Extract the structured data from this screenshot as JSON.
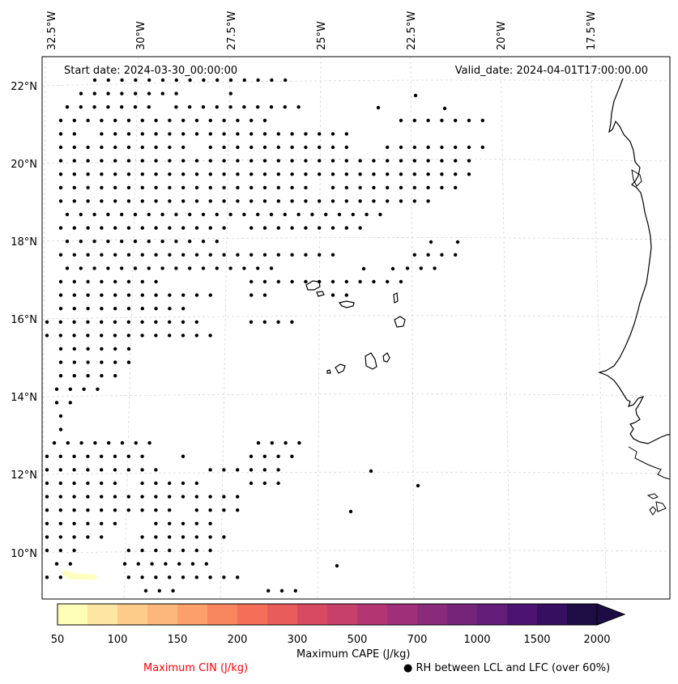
{
  "map": {
    "start_date": "Start date: 2024-03-30_00:00:00",
    "valid_date": "Valid_date: 2024-04-01T17:00:00.00",
    "lon_ticks": [
      "32.5°W",
      "30°W",
      "27.5°W",
      "25°W",
      "22.5°W",
      "20°W",
      "17.5°W"
    ],
    "lat_ticks": [
      "22°N",
      "20°N",
      "18°N",
      "16°N",
      "14°N",
      "12°N",
      "10°N"
    ],
    "extent": {
      "lon_min": -33.0,
      "lon_max": -16.0,
      "lat_min": 8.9,
      "lat_max": 22.7
    },
    "features": [
      "coastline West Africa (Mauritania, Senegal, Guinea-Bissau)",
      "Cape Verde islands"
    ],
    "colors": {
      "dot": "#000000",
      "coast": "#000000",
      "grid": "#d0d0d0",
      "cape_low": "#ffffc0"
    }
  },
  "colorbar": {
    "label": "Maximum CAPE (J/kg)",
    "tick_labels": [
      "50",
      "100",
      "150",
      "200",
      "300",
      "500",
      "700",
      "1000",
      "1500",
      "2000"
    ],
    "colors": [
      "#fefeb8",
      "#fde5a2",
      "#fdcc8a",
      "#fdb67b",
      "#fd9f6a",
      "#f9865e",
      "#f46e58",
      "#e85c5b",
      "#d84a62",
      "#c73f6b",
      "#b33673",
      "#9e2f78",
      "#8a2a7a",
      "#75247a",
      "#611d78",
      "#4c1470",
      "#360f60",
      "#1e0d45"
    ],
    "extend": "max"
  },
  "legend": {
    "cin_label": "Maximum CIN (J/kg)",
    "cin_color": "#ff0000",
    "rh_label": "● RH between LCL and LFC (over 60%)"
  }
}
